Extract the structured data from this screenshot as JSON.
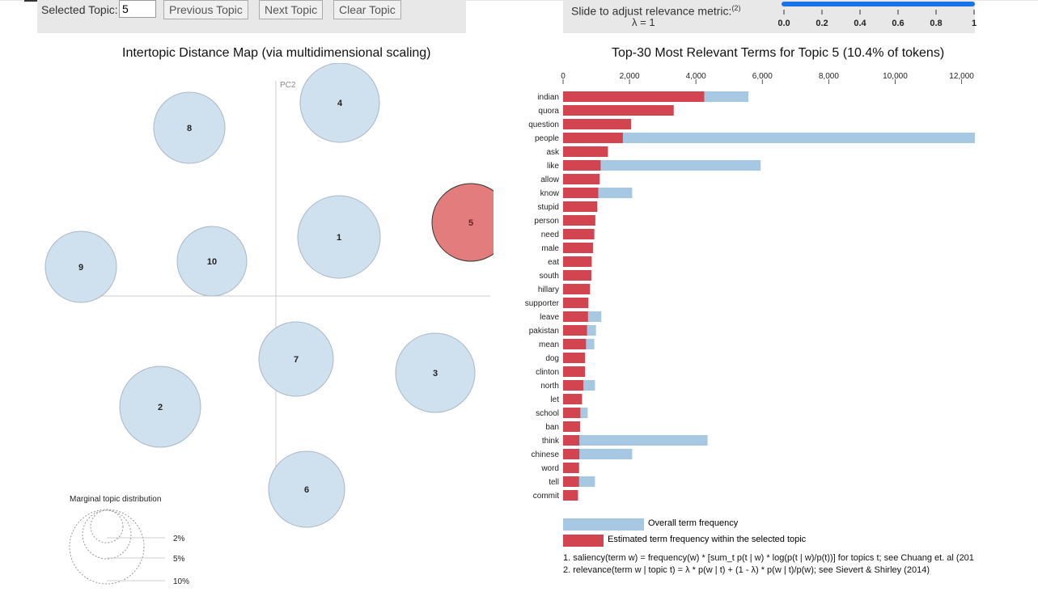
{
  "controls": {
    "selected_label": "Selected Topic:",
    "selected_value": "5",
    "prev_label": "Previous Topic",
    "next_label": "Next Topic",
    "clear_label": "Clear Topic",
    "slider_label": "Slide to adjust relevance metric:",
    "slider_ref": "(2)",
    "lambda_label": "λ = 1",
    "slider_ticks": [
      "0.0",
      "0.2",
      "0.4",
      "0.6",
      "0.8",
      "1"
    ],
    "lambda": 1
  },
  "left_title": "Intertopic Distance Map (via multidimensional scaling)",
  "right_title": "Top-30 Most Relevant Terms for Topic 5 (10.4% of tokens)",
  "axes": {
    "pc1": "PC1",
    "pc2": "PC2"
  },
  "topics": [
    {
      "id": "1",
      "selected": false
    },
    {
      "id": "2",
      "selected": false
    },
    {
      "id": "3",
      "selected": false
    },
    {
      "id": "4",
      "selected": false
    },
    {
      "id": "5",
      "selected": true
    },
    {
      "id": "6",
      "selected": false
    },
    {
      "id": "7",
      "selected": false
    },
    {
      "id": "8",
      "selected": false
    },
    {
      "id": "9",
      "selected": false
    },
    {
      "id": "10",
      "selected": false
    }
  ],
  "marginal": {
    "title": "Marginal topic distribution",
    "labels": [
      "2%",
      "5%",
      "10%"
    ]
  },
  "colors": {
    "overall": "#a6c8e2",
    "topic": "#d2444f",
    "circle": "#cfe0ee",
    "selected_circle": "#e37c7c"
  },
  "chart_data": {
    "type": "bar",
    "orientation": "horizontal",
    "xlim": [
      0,
      12400
    ],
    "xticks": [
      0,
      2000,
      4000,
      6000,
      8000,
      10000,
      12000
    ],
    "xtick_labels": [
      "0",
      "2,000",
      "4,000",
      "6,000",
      "8,000",
      "10,000",
      "12,000"
    ],
    "categories": [
      "indian",
      "quora",
      "question",
      "people",
      "ask",
      "like",
      "allow",
      "know",
      "stupid",
      "person",
      "need",
      "male",
      "eat",
      "south",
      "hillary",
      "supporter",
      "leave",
      "pakistan",
      "mean",
      "dog",
      "clinton",
      "north",
      "let",
      "school",
      "ban",
      "think",
      "chinese",
      "word",
      "tell",
      "commit"
    ],
    "series": [
      {
        "name": "Overall term frequency",
        "values": [
          5580,
          3330,
          2050,
          12400,
          1350,
          5950,
          1100,
          2080,
          1030,
          970,
          940,
          900,
          860,
          850,
          810,
          760,
          1150,
          990,
          940,
          660,
          660,
          960,
          570,
          740,
          510,
          4350,
          2080,
          480,
          960,
          450
        ]
      },
      {
        "name": "Estimated term frequency within the selected topic",
        "values": [
          4250,
          3330,
          2050,
          1800,
          1350,
          1130,
          1100,
          1060,
          1030,
          970,
          940,
          900,
          860,
          850,
          810,
          760,
          750,
          720,
          690,
          660,
          660,
          610,
          570,
          520,
          510,
          490,
          490,
          480,
          480,
          450
        ]
      }
    ]
  },
  "legend": {
    "overall": "Overall term frequency",
    "topic": "Estimated term frequency within the selected topic"
  },
  "footnotes": [
    "1. saliency(term w) = frequency(w) * [sum_t p(t | w) * log(p(t | w)/p(t))] for topics t; see Chuang et. al (201",
    "2. relevance(term w | topic t) = λ * p(w | t) + (1 - λ) * p(w | t)/p(w); see Sievert & Shirley (2014)"
  ]
}
